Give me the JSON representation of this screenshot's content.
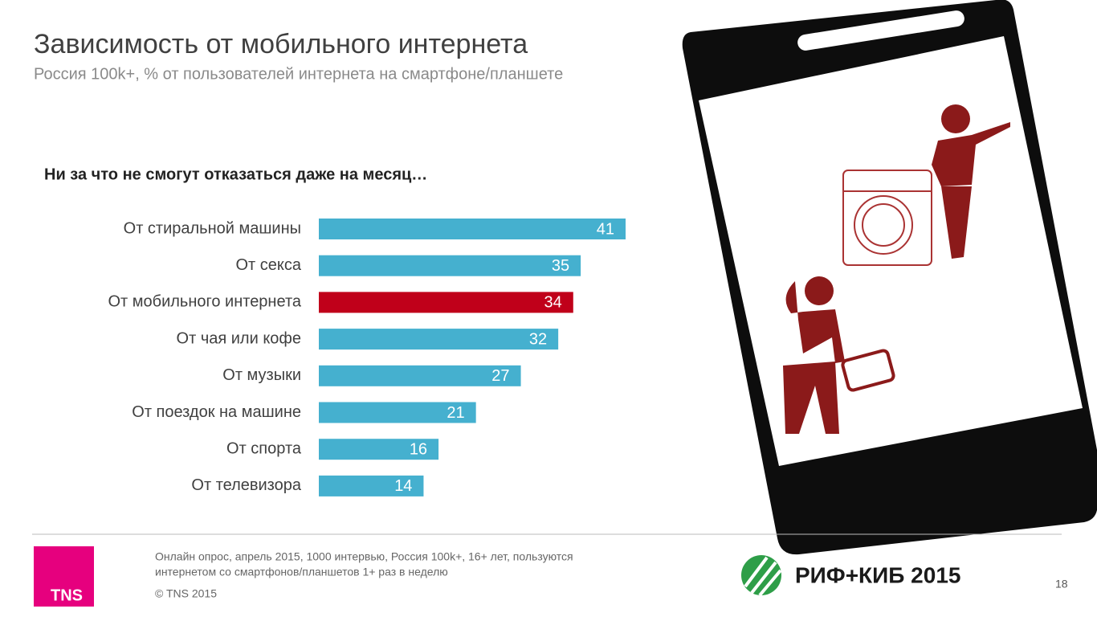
{
  "header": {
    "title": "Зависимость от мобильного интернета",
    "subtitle": "Россия 100k+, % от пользователей интернета на смартфоне/планшете"
  },
  "chart_data": {
    "type": "hbar",
    "title": "Ни за что не смогут отказаться даже на месяц…",
    "categories": [
      "От стиральной машины",
      "От секса",
      "От мобильного интернета",
      "От чая или кофе",
      "От музыки",
      "От поездок на машине",
      "От спорта",
      "От телевизора"
    ],
    "values": [
      41,
      35,
      34,
      32,
      27,
      21,
      16,
      14
    ],
    "colors": [
      "#45b0cf",
      "#45b0cf",
      "#c0001a",
      "#45b0cf",
      "#45b0cf",
      "#45b0cf",
      "#45b0cf",
      "#45b0cf"
    ]
  },
  "footer": {
    "note": [
      "Онлайн опрос, апрель 2015, 1000 интервью, Россия 100k+, 16+ лет, пользуются",
      "интернетом со смартфонов/планшетов 1+ раз в неделю"
    ],
    "copyright": "© TNS 2015",
    "logo": "TNS",
    "event": "РИФ+КИБ 2015",
    "page": "18"
  }
}
